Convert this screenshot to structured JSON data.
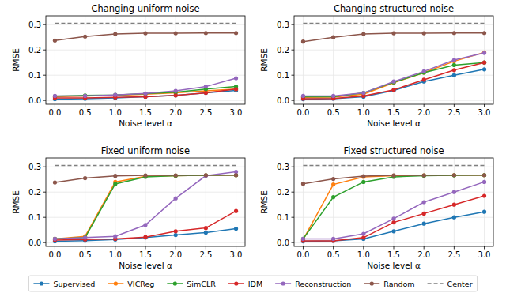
{
  "chart_data": [
    {
      "type": "line",
      "title": "Changing uniform noise",
      "x_label": "Noise level α",
      "y_label": "RMSE",
      "legend": "bottom",
      "grid": true,
      "x": [
        0,
        0.5,
        1,
        1.5,
        2,
        2.5,
        3
      ],
      "xlim": [
        -0.15,
        3.15
      ],
      "ylim": [
        -0.015,
        0.335
      ],
      "xticks": [
        {
          "value": 0,
          "label": "0.0"
        },
        0.5,
        {
          "value": 1,
          "label": "1.0"
        },
        1.5,
        {
          "value": 2,
          "label": "2.0"
        },
        2.5,
        {
          "value": 3,
          "label": "3.0"
        }
      ],
      "yticks": [
        {
          "value": 0,
          "label": "0.0"
        },
        0.1,
        0.2,
        0.3
      ],
      "series": [
        {
          "name": "Supervised",
          "color": "#1f77b4",
          "marker": "circle",
          "values": [
            0.005,
            0.007,
            0.01,
            0.015,
            0.02,
            0.03,
            0.04
          ]
        },
        {
          "name": "VICReg",
          "color": "#ff7f0e",
          "marker": "circle",
          "values": [
            0.015,
            0.018,
            0.02,
            0.025,
            0.03,
            0.038,
            0.045
          ]
        },
        {
          "name": "SimCLR",
          "color": "#2ca02c",
          "marker": "circle",
          "values": [
            0.017,
            0.02,
            0.022,
            0.027,
            0.033,
            0.045,
            0.055
          ]
        },
        {
          "name": "IDM",
          "color": "#d62728",
          "marker": "circle",
          "values": [
            0.01,
            0.01,
            0.012,
            0.015,
            0.02,
            0.03,
            0.045
          ]
        },
        {
          "name": "Reconstruction",
          "color": "#9467bd",
          "marker": "circle",
          "values": [
            0.018,
            0.018,
            0.022,
            0.028,
            0.038,
            0.055,
            0.088
          ]
        },
        {
          "name": "Random",
          "color": "#8c564b",
          "marker": "circle",
          "values": [
            0.237,
            0.253,
            0.263,
            0.266,
            0.266,
            0.267,
            0.267
          ]
        },
        {
          "name": "Center",
          "color": "#7f7f7f",
          "marker": "none",
          "line_style": "dashed",
          "values": [
            0.305,
            0.305,
            0.305,
            0.305,
            0.305,
            0.305,
            0.305
          ]
        }
      ]
    },
    {
      "type": "line",
      "title": "Changing structured noise",
      "x_label": "Noise level α",
      "y_label": "RMSE",
      "grid": true,
      "x": [
        0,
        0.5,
        1,
        1.5,
        2,
        2.5,
        3
      ],
      "xlim": [
        -0.15,
        3.15
      ],
      "ylim": [
        -0.015,
        0.335
      ],
      "xticks": [
        {
          "value": 0,
          "label": "0.0"
        },
        0.5,
        {
          "value": 1,
          "label": "1.0"
        },
        1.5,
        {
          "value": 2,
          "label": "2.0"
        },
        2.5,
        {
          "value": 3,
          "label": "3.0"
        }
      ],
      "yticks": [
        {
          "value": 0,
          "label": "0.0"
        },
        0.1,
        0.2,
        0.3
      ],
      "series": [
        {
          "name": "Supervised",
          "color": "#1f77b4",
          "marker": "circle",
          "values": [
            0.005,
            0.007,
            0.015,
            0.04,
            0.075,
            0.1,
            0.123
          ]
        },
        {
          "name": "VICReg",
          "color": "#ff7f0e",
          "marker": "circle",
          "values": [
            0.012,
            0.013,
            0.025,
            0.07,
            0.11,
            0.155,
            0.19
          ]
        },
        {
          "name": "SimCLR",
          "color": "#2ca02c",
          "marker": "circle",
          "values": [
            0.015,
            0.015,
            0.03,
            0.072,
            0.11,
            0.14,
            0.15
          ]
        },
        {
          "name": "IDM",
          "color": "#d62728",
          "marker": "circle",
          "values": [
            0.007,
            0.008,
            0.018,
            0.042,
            0.082,
            0.12,
            0.15
          ]
        },
        {
          "name": "Reconstruction",
          "color": "#9467bd",
          "marker": "circle",
          "values": [
            0.018,
            0.018,
            0.03,
            0.075,
            0.115,
            0.16,
            0.188
          ]
        },
        {
          "name": "Random",
          "color": "#8c564b",
          "marker": "circle",
          "values": [
            0.233,
            0.25,
            0.263,
            0.266,
            0.266,
            0.267,
            0.267
          ]
        },
        {
          "name": "Center",
          "color": "#7f7f7f",
          "marker": "none",
          "line_style": "dashed",
          "values": [
            0.305,
            0.305,
            0.305,
            0.305,
            0.305,
            0.305,
            0.305
          ]
        }
      ]
    },
    {
      "type": "line",
      "title": "Fixed uniform noise",
      "x_label": "Noise level α",
      "y_label": "RMSE",
      "grid": true,
      "x": [
        0,
        0.5,
        1,
        1.5,
        2,
        2.5,
        3
      ],
      "xlim": [
        -0.15,
        3.15
      ],
      "ylim": [
        -0.015,
        0.335
      ],
      "xticks": [
        {
          "value": 0,
          "label": "0.0"
        },
        0.5,
        {
          "value": 1,
          "label": "1.0"
        },
        1.5,
        {
          "value": 2,
          "label": "2.0"
        },
        2.5,
        {
          "value": 3,
          "label": "3.0"
        }
      ],
      "yticks": [
        {
          "value": 0,
          "label": "0.0"
        },
        0.1,
        0.2,
        0.3
      ],
      "series": [
        {
          "name": "Supervised",
          "color": "#1f77b4",
          "marker": "circle",
          "values": [
            0.005,
            0.008,
            0.012,
            0.02,
            0.03,
            0.04,
            0.055
          ]
        },
        {
          "name": "VICReg",
          "color": "#ff7f0e",
          "marker": "circle",
          "values": [
            0.015,
            0.025,
            0.24,
            0.262,
            0.265,
            0.266,
            0.267
          ]
        },
        {
          "name": "SimCLR",
          "color": "#2ca02c",
          "marker": "circle",
          "values": [
            0.015,
            0.02,
            0.232,
            0.26,
            0.265,
            0.266,
            0.267
          ]
        },
        {
          "name": "IDM",
          "color": "#d62728",
          "marker": "circle",
          "values": [
            0.01,
            0.012,
            0.015,
            0.022,
            0.045,
            0.058,
            0.125
          ]
        },
        {
          "name": "Reconstruction",
          "color": "#9467bd",
          "marker": "circle",
          "values": [
            0.015,
            0.02,
            0.025,
            0.07,
            0.175,
            0.265,
            0.28
          ]
        },
        {
          "name": "Random",
          "color": "#8c564b",
          "marker": "circle",
          "values": [
            0.238,
            0.255,
            0.264,
            0.266,
            0.266,
            0.267,
            0.267
          ]
        },
        {
          "name": "Center",
          "color": "#7f7f7f",
          "marker": "none",
          "line_style": "dashed",
          "values": [
            0.305,
            0.305,
            0.305,
            0.305,
            0.305,
            0.305,
            0.305
          ]
        }
      ]
    },
    {
      "type": "line",
      "title": "Fixed structured noise",
      "x_label": "Noise level α",
      "y_label": "RMSE",
      "grid": true,
      "x": [
        0,
        0.5,
        1,
        1.5,
        2,
        2.5,
        3
      ],
      "xlim": [
        -0.15,
        3.15
      ],
      "ylim": [
        -0.015,
        0.335
      ],
      "xticks": [
        {
          "value": 0,
          "label": "0.0"
        },
        0.5,
        {
          "value": 1,
          "label": "1.0"
        },
        1.5,
        {
          "value": 2,
          "label": "2.0"
        },
        2.5,
        {
          "value": 3,
          "label": "3.0"
        }
      ],
      "yticks": [
        {
          "value": 0,
          "label": "0.0"
        },
        0.1,
        0.2,
        0.3
      ],
      "series": [
        {
          "name": "Supervised",
          "color": "#1f77b4",
          "marker": "circle",
          "values": [
            0.005,
            0.007,
            0.015,
            0.045,
            0.075,
            0.1,
            0.122
          ]
        },
        {
          "name": "VICReg",
          "color": "#ff7f0e",
          "marker": "circle",
          "values": [
            0.012,
            0.23,
            0.26,
            0.265,
            0.266,
            0.267,
            0.267
          ]
        },
        {
          "name": "SimCLR",
          "color": "#2ca02c",
          "marker": "circle",
          "values": [
            0.015,
            0.18,
            0.24,
            0.26,
            0.265,
            0.266,
            0.267
          ]
        },
        {
          "name": "IDM",
          "color": "#d62728",
          "marker": "circle",
          "values": [
            0.007,
            0.007,
            0.02,
            0.08,
            0.115,
            0.15,
            0.185
          ]
        },
        {
          "name": "Reconstruction",
          "color": "#9467bd",
          "marker": "circle",
          "values": [
            0.015,
            0.015,
            0.035,
            0.095,
            0.16,
            0.2,
            0.24
          ]
        },
        {
          "name": "Random",
          "color": "#8c564b",
          "marker": "circle",
          "values": [
            0.233,
            0.252,
            0.263,
            0.266,
            0.266,
            0.267,
            0.267
          ]
        },
        {
          "name": "Center",
          "color": "#7f7f7f",
          "marker": "none",
          "line_style": "dashed",
          "values": [
            0.305,
            0.305,
            0.305,
            0.305,
            0.305,
            0.305,
            0.305
          ]
        }
      ]
    }
  ]
}
